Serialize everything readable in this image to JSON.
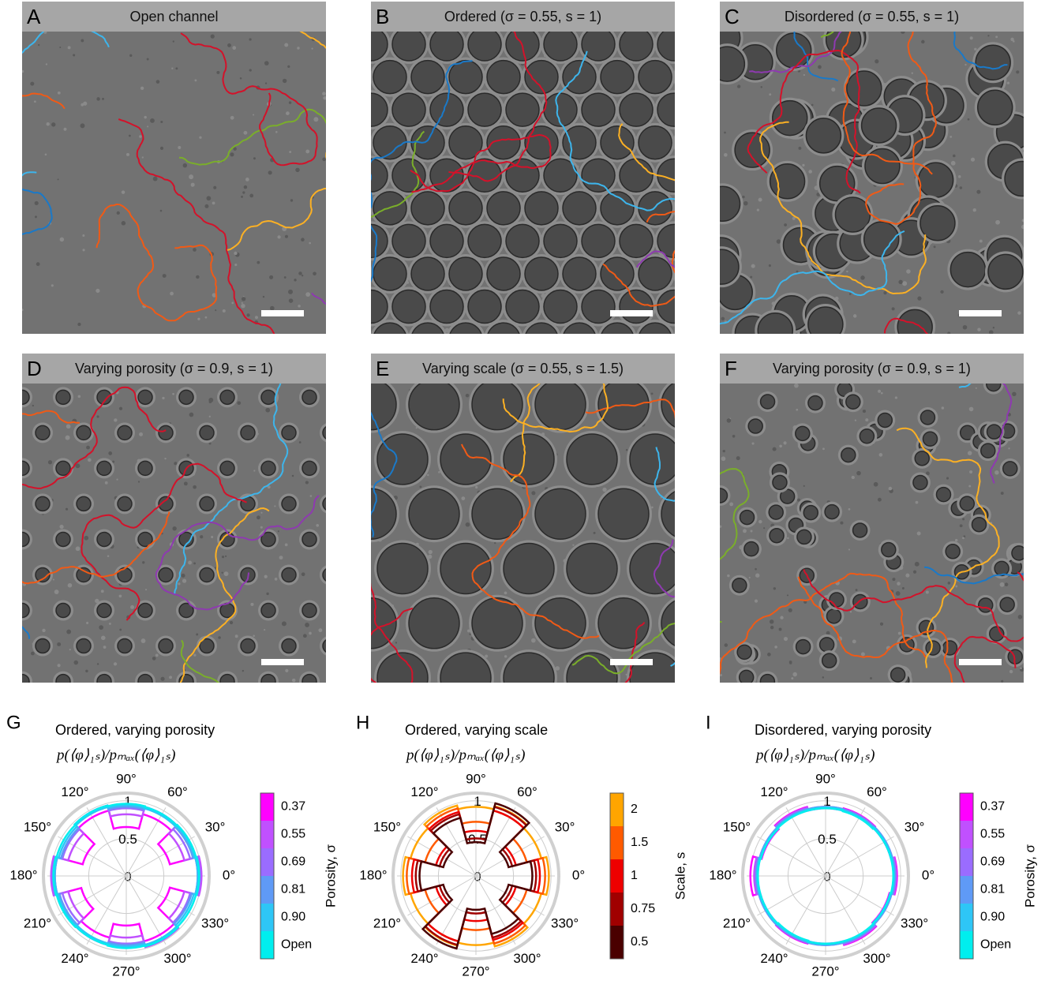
{
  "panels": [
    {
      "letter": "A",
      "title": "Open channel"
    },
    {
      "letter": "B",
      "title": "Ordered (σ = 0.55, s = 1)"
    },
    {
      "letter": "C",
      "title": "Disordered (σ = 0.55, s = 1)"
    },
    {
      "letter": "D",
      "title": "Varying porosity (σ = 0.9, s = 1)"
    },
    {
      "letter": "E",
      "title": "Varying scale (σ = 0.55, s = 1.5)"
    },
    {
      "letter": "F",
      "title": "Varying porosity (σ = 0.9, s = 1)"
    }
  ],
  "polar_plots": [
    {
      "letter": "G",
      "title": "Ordered, varying porosity",
      "subtitle": "p(⟨φ⟩₁ₛ)/pₘₐₓ(⟨φ⟩₁ₛ)",
      "angle_labels": [
        "0°",
        "30°",
        "60°",
        "90°",
        "120°",
        "150°",
        "180°",
        "210°",
        "240°",
        "270°",
        "300°",
        "330°"
      ],
      "rlim": [
        0,
        1.05
      ],
      "rticks": [
        0,
        0.5,
        1
      ],
      "colorbar": {
        "label": "Porosity, σ"
      },
      "series": [
        {
          "name": "0.37",
          "color": "#ff00ff",
          "values": [
            0.95,
            0.6,
            0.85,
            0.65,
            0.9,
            0.6,
            0.95,
            0.62,
            0.85,
            0.66,
            0.9,
            0.6
          ]
        },
        {
          "name": "0.55",
          "color": "#c050ff",
          "values": [
            1,
            0.8,
            0.95,
            0.82,
            0.97,
            0.8,
            1,
            0.8,
            0.95,
            0.82,
            0.98,
            0.8
          ]
        },
        {
          "name": "0.69",
          "color": "#9a6cff",
          "values": [
            0.98,
            0.88,
            0.95,
            0.9,
            0.97,
            0.88,
            0.98,
            0.88,
            0.95,
            0.9,
            0.97,
            0.88
          ]
        },
        {
          "name": "0.81",
          "color": "#5f9af6",
          "values": [
            0.96,
            0.92,
            0.94,
            0.92,
            0.95,
            0.9,
            0.96,
            0.92,
            0.94,
            0.92,
            0.95,
            0.9
          ]
        },
        {
          "name": "0.90",
          "color": "#2ec6f6",
          "values": [
            0.95,
            0.94,
            0.93,
            0.94,
            0.95,
            0.93,
            0.95,
            0.94,
            0.93,
            0.94,
            0.95,
            0.93
          ]
        },
        {
          "name": "Open",
          "color": "#00eeee",
          "values": [
            0.97,
            0.96,
            0.95,
            0.96,
            0.97,
            0.96,
            0.97,
            0.96,
            0.95,
            0.96,
            0.97,
            0.96
          ]
        }
      ]
    },
    {
      "letter": "H",
      "title": "Ordered, varying scale",
      "subtitle": "p(⟨φ⟩₁ₛ)/pₘₐₓ(⟨φ⟩₁ₛ)",
      "angle_labels": [
        "0°",
        "30°",
        "60°",
        "90°",
        "120°",
        "150°",
        "180°",
        "210°",
        "240°",
        "270°",
        "300°",
        "330°"
      ],
      "rlim": [
        0,
        1.05
      ],
      "rticks": [
        0,
        0.5,
        1
      ],
      "colorbar": {
        "label": "Scale, s"
      },
      "series": [
        {
          "name": "2",
          "color": "#ffa500",
          "values": [
            0.97,
            0.9,
            0.96,
            0.92,
            0.97,
            0.9,
            0.97,
            0.9,
            0.96,
            0.92,
            0.97,
            0.9
          ]
        },
        {
          "name": "1.5",
          "color": "#ff5a00",
          "values": [
            0.92,
            0.7,
            0.9,
            0.72,
            0.93,
            0.7,
            0.92,
            0.7,
            0.9,
            0.72,
            0.93,
            0.7
          ]
        },
        {
          "name": "1",
          "color": "#ee0000",
          "values": [
            0.85,
            0.55,
            0.9,
            0.6,
            0.88,
            0.55,
            0.85,
            0.55,
            0.9,
            0.6,
            0.88,
            0.55
          ]
        },
        {
          "name": "0.75",
          "color": "#a00000",
          "values": [
            0.8,
            0.5,
            0.95,
            0.5,
            0.85,
            0.5,
            0.8,
            0.5,
            0.95,
            0.5,
            0.85,
            0.5
          ]
        },
        {
          "name": "0.5",
          "color": "#4a0000",
          "values": [
            0.75,
            0.45,
            1,
            0.45,
            0.8,
            0.45,
            0.75,
            0.45,
            1,
            0.45,
            0.8,
            0.45
          ]
        }
      ]
    },
    {
      "letter": "I",
      "title": "Disordered, varying porosity",
      "subtitle": "p(⟨φ⟩₁ₛ)/pₘₐₓ(⟨φ⟩₁ₛ)",
      "angle_labels": [
        "0°",
        "30°",
        "60°",
        "90°",
        "120°",
        "150°",
        "180°",
        "210°",
        "240°",
        "270°",
        "300°",
        "330°"
      ],
      "rlim": [
        0,
        1.05
      ],
      "rticks": [
        0,
        0.5,
        1
      ],
      "colorbar": {
        "label": "Porosity, σ"
      },
      "series": [
        {
          "name": "0.37",
          "color": "#ff00ff",
          "values": [
            0.95,
            0.9,
            0.93,
            0.9,
            0.95,
            0.88,
            1,
            0.9,
            0.93,
            0.9,
            0.95,
            0.88
          ]
        },
        {
          "name": "0.55",
          "color": "#c050ff",
          "values": [
            0.94,
            0.91,
            0.92,
            0.91,
            0.94,
            0.9,
            0.95,
            0.91,
            0.92,
            0.91,
            0.94,
            0.9
          ]
        },
        {
          "name": "0.69",
          "color": "#9a6cff",
          "values": [
            0.93,
            0.92,
            0.92,
            0.92,
            0.93,
            0.91,
            0.93,
            0.92,
            0.92,
            0.92,
            0.93,
            0.91
          ]
        },
        {
          "name": "0.81",
          "color": "#5f9af6",
          "values": [
            0.92,
            0.92,
            0.91,
            0.92,
            0.92,
            0.91,
            0.92,
            0.92,
            0.91,
            0.92,
            0.92,
            0.91
          ]
        },
        {
          "name": "0.90",
          "color": "#2ec6f6",
          "values": [
            0.91,
            0.91,
            0.9,
            0.91,
            0.91,
            0.9,
            0.91,
            0.91,
            0.9,
            0.91,
            0.91,
            0.9
          ]
        },
        {
          "name": "Open",
          "color": "#00eeee",
          "values": [
            0.9,
            0.9,
            0.89,
            0.9,
            0.9,
            0.89,
            0.9,
            0.9,
            0.89,
            0.9,
            0.9,
            0.89
          ]
        }
      ]
    }
  ]
}
